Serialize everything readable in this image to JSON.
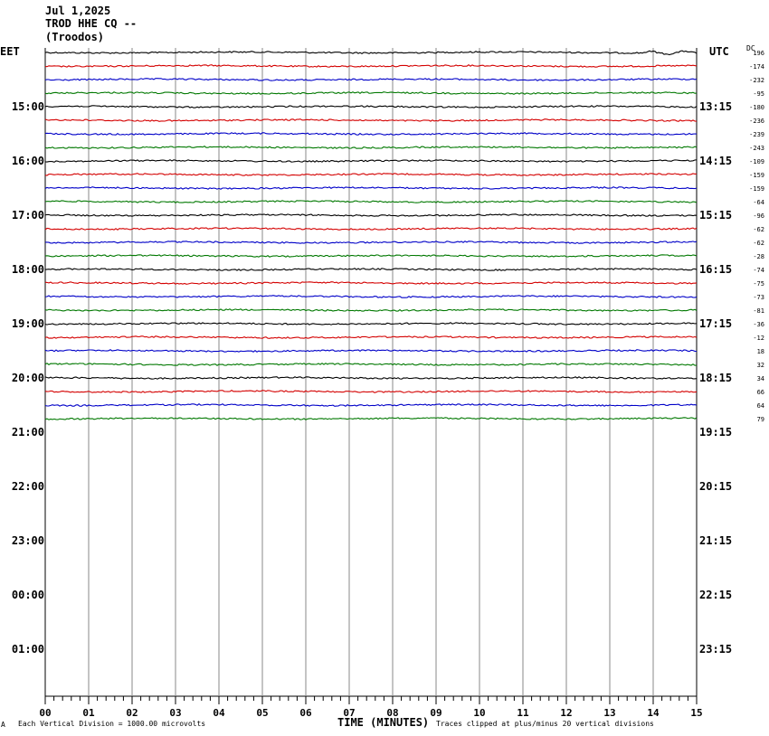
{
  "header": {
    "date": "Jul 1,2025",
    "station": "TROD HHE CQ --",
    "location": "(Troodos)"
  },
  "tz_left": "EET",
  "tz_right": "UTC",
  "dc_label": "DC",
  "x_axis_title": "TIME (MINUTES)",
  "footer": {
    "scale_note": "Each Vertical Division = 1000.00 microvolts",
    "clip_note": "Traces clipped at plus/minus 20 vertical divisions",
    "corner_mark": "A"
  },
  "colors": {
    "trace_cycle": [
      "#000000",
      "#d40000",
      "#0000c8",
      "#007800"
    ],
    "grid": "#888888"
  },
  "chart_data": {
    "type": "line",
    "title": "TROD HHE CQ -- (Troodos)",
    "xlabel": "TIME (MINUTES)",
    "ylabel": "",
    "x_ticks": [
      "00",
      "01",
      "02",
      "03",
      "04",
      "05",
      "06",
      "07",
      "08",
      "09",
      "10",
      "11",
      "12",
      "13",
      "14",
      "15"
    ],
    "xlim": [
      0,
      15
    ],
    "left_hour_labels": [
      "15:00",
      "16:00",
      "17:00",
      "18:00",
      "19:00",
      "20:00",
      "21:00",
      "22:00",
      "23:00",
      "00:00",
      "01:00"
    ],
    "right_hour_labels": [
      "13:15",
      "14:15",
      "15:15",
      "16:15",
      "17:15",
      "18:15",
      "19:15",
      "20:15",
      "21:15",
      "22:15",
      "23:15"
    ],
    "rows_total": 48,
    "dc_offsets": [
      196,
      -174,
      -232,
      -95,
      -180,
      -236,
      -239,
      -243,
      -109,
      -159,
      -159,
      -64,
      -96,
      -62,
      -62,
      -28,
      -74,
      -75,
      -73,
      -81,
      -36,
      -12,
      18,
      32,
      34,
      66,
      64,
      79
    ],
    "grid": true
  }
}
